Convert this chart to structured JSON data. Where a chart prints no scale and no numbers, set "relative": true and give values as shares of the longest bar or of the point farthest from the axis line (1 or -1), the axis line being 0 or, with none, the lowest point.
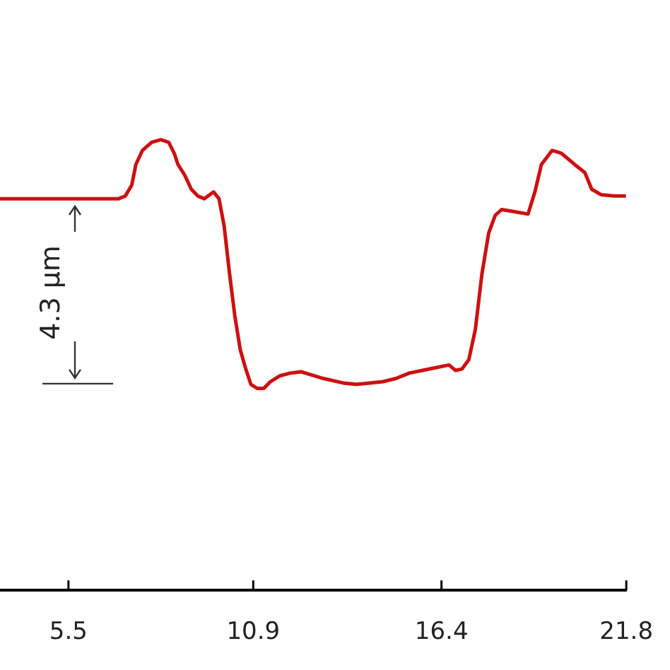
{
  "chart_data": {
    "type": "line",
    "relative": true,
    "tick_labels": "x",
    "marker": "none",
    "line_style": "solid",
    "xlim": [
      3.5,
      21.8
    ],
    "xticks": [
      5.5,
      10.9,
      16.4,
      21.8
    ],
    "annotations": [
      "4.3 µm"
    ],
    "series": [
      {
        "color": "#cc1111",
        "x": [
          3.5,
          4.65,
          5.81,
          6.97,
          7.16,
          7.35,
          7.47,
          7.66,
          7.93,
          8.2,
          8.43,
          8.59,
          8.7,
          8.9,
          9.09,
          9.28,
          9.47,
          9.74,
          9.9,
          10.05,
          10.21,
          10.36,
          10.52,
          10.67,
          10.83,
          11.02,
          11.21,
          11.4,
          11.68,
          11.98,
          12.29,
          12.56,
          12.95,
          13.53,
          13.91,
          14.3,
          14.69,
          15.07,
          15.46,
          15.85,
          16.23,
          16.62,
          16.81,
          17.0,
          17.2,
          17.39,
          17.58,
          17.78,
          17.97,
          18.16,
          18.47,
          18.93,
          19.13,
          19.32,
          19.63,
          19.78,
          19.9,
          20.29,
          20.59,
          20.79,
          21.06,
          21.44,
          21.79
        ],
        "values": [
          0.869,
          0.869,
          0.869,
          0.869,
          0.875,
          0.899,
          0.945,
          0.976,
          0.994,
          1,
          0.994,
          0.97,
          0.945,
          0.921,
          0.89,
          0.875,
          0.869,
          0.884,
          0.869,
          0.808,
          0.701,
          0.61,
          0.534,
          0.494,
          0.457,
          0.448,
          0.448,
          0.463,
          0.476,
          0.482,
          0.485,
          0.479,
          0.47,
          0.46,
          0.457,
          0.46,
          0.463,
          0.47,
          0.482,
          0.488,
          0.494,
          0.5,
          0.488,
          0.491,
          0.512,
          0.579,
          0.701,
          0.793,
          0.832,
          0.845,
          0.841,
          0.835,
          0.884,
          0.945,
          0.976,
          0.973,
          0.97,
          0.945,
          0.927,
          0.89,
          0.878,
          0.875,
          0.875
        ]
      }
    ]
  }
}
